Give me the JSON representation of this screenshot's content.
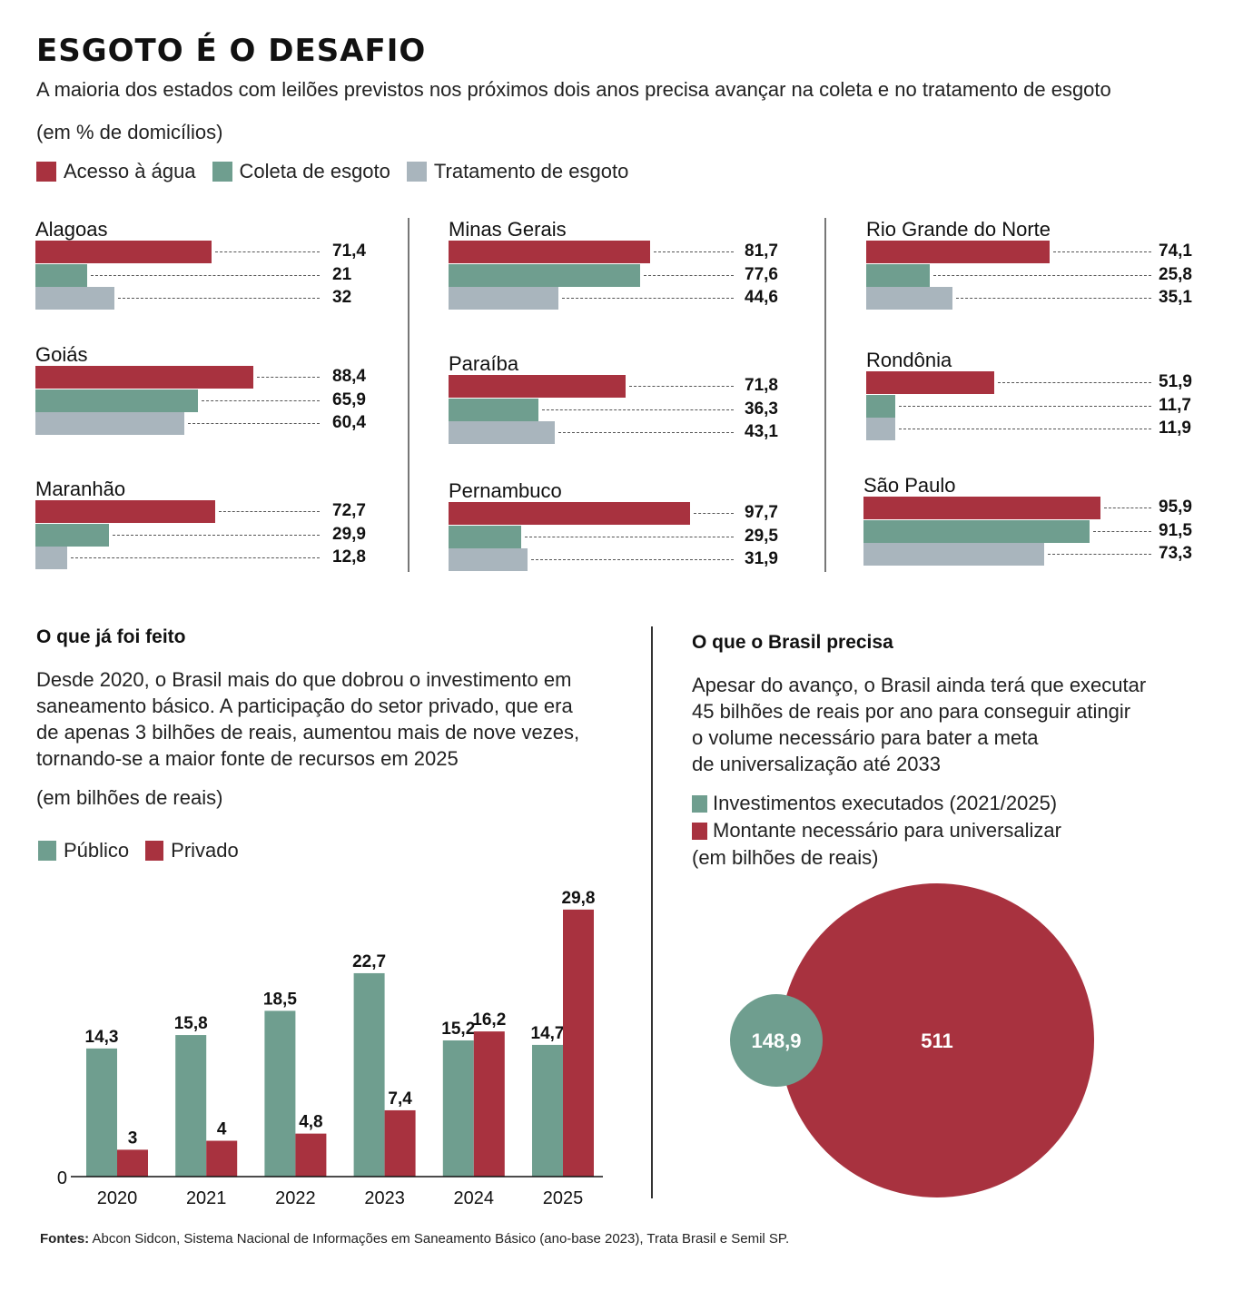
{
  "header": {
    "title": "ESGOTO É O DESAFIO",
    "subtitle": "A maioria dos estados com leilões previstos nos próximos dois anos precisa avançar na coleta e no tratamento de esgoto",
    "unit": "(em % de domicílios)"
  },
  "colors": {
    "agua": "#a8323f",
    "coleta": "#6f9e8f",
    "tratamento": "#a9b5bd",
    "publico": "#6f9e8f",
    "privado": "#a8323f"
  },
  "legend": [
    {
      "label": "Acesso à água",
      "color": "#a8323f"
    },
    {
      "label": "Coleta de esgoto",
      "color": "#6f9e8f"
    },
    {
      "label": "Tratamento de esgoto",
      "color": "#a9b5bd"
    }
  ],
  "chart_data": [
    {
      "type": "bar",
      "orientation": "horizontal",
      "title": "ESGOTO É O DESAFIO",
      "unit": "% de domicílios",
      "series_names": [
        "Acesso à água",
        "Coleta de esgoto",
        "Tratamento de esgoto"
      ],
      "xlim": [
        0,
        100
      ],
      "states": [
        {
          "name": "Alagoas",
          "values": [
            71.4,
            21,
            32
          ],
          "labels": [
            "71,4",
            "21",
            "32"
          ]
        },
        {
          "name": "Goiás",
          "values": [
            88.4,
            65.9,
            60.4
          ],
          "labels": [
            "88,4",
            "65,9",
            "60,4"
          ]
        },
        {
          "name": "Maranhão",
          "values": [
            72.7,
            29.9,
            12.8
          ],
          "labels": [
            "72,7",
            "29,9",
            "12,8"
          ]
        },
        {
          "name": "Minas Gerais",
          "values": [
            81.7,
            77.6,
            44.6
          ],
          "labels": [
            "81,7",
            "77,6",
            "44,6"
          ]
        },
        {
          "name": "Paraíba",
          "values": [
            71.8,
            36.3,
            43.1
          ],
          "labels": [
            "71,8",
            "36,3",
            "43,1"
          ]
        },
        {
          "name": "Pernambuco",
          "values": [
            97.7,
            29.5,
            31.9
          ],
          "labels": [
            "97,7",
            "29,5",
            "31,9"
          ]
        },
        {
          "name": "Rio Grande do Norte",
          "values": [
            74.1,
            25.8,
            35.1
          ],
          "labels": [
            "74,1",
            "25,8",
            "35,1"
          ]
        },
        {
          "name": "Rondônia",
          "values": [
            51.9,
            11.7,
            11.9
          ],
          "labels": [
            "51,9",
            "11,7",
            "11,9"
          ]
        },
        {
          "name": "São Paulo",
          "values": [
            95.9,
            91.5,
            73.3
          ],
          "labels": [
            "95,9",
            "91,5",
            "73,3"
          ]
        }
      ]
    },
    {
      "type": "bar",
      "title": "O que já foi feito",
      "ylabel": "em bilhões de reais",
      "categories": [
        "2020",
        "2021",
        "2022",
        "2023",
        "2024",
        "2025"
      ],
      "series": [
        {
          "name": "Público",
          "values": [
            14.3,
            15.8,
            18.5,
            22.7,
            15.2,
            14.7
          ],
          "labels": [
            "14,3",
            "15,8",
            "18,5",
            "22,7",
            "15,2",
            "14,7"
          ]
        },
        {
          "name": "Privado",
          "values": [
            3,
            4,
            4.8,
            7.4,
            16.2,
            29.8
          ],
          "labels": [
            "3",
            "4",
            "4,8",
            "7,4",
            "16,2",
            "29,8"
          ]
        }
      ],
      "ylim": [
        0,
        30
      ],
      "yticks": [
        "0"
      ],
      "legend": "top-left"
    },
    {
      "type": "bubble",
      "title": "O que o Brasil precisa",
      "unit": "em bilhões de reais",
      "items": [
        {
          "name": "Investimentos executados (2021/2025)",
          "value": 148.9,
          "label": "148,9"
        },
        {
          "name": "Montante necessário para universalizar",
          "value": 511,
          "label": "511"
        }
      ]
    }
  ],
  "section_done": {
    "heading": "O que já foi feito",
    "text": "Desde 2020, o Brasil mais do que dobrou o investimento em\nsaneamento básico. A participação do setor privado, que era\nde apenas 3 bilhões de reais, aumentou mais de nove vezes,\ntornando-se a maior fonte de recursos em 2025",
    "unit": "(em bilhões de reais)",
    "legend": [
      {
        "label": "Público"
      },
      {
        "label": "Privado"
      }
    ]
  },
  "section_need": {
    "heading": "O que o Brasil precisa",
    "text": "Apesar do avanço, o Brasil ainda terá que executar\n45 bilhões de reais por ano para conseguir atingir\no volume necessário para bater a meta\nde universalização até 2033",
    "legend": [
      {
        "label": "Investimentos executados (2021/2025)"
      },
      {
        "label": "Montante necessário para universalizar"
      }
    ],
    "unit": "(em bilhões de reais)"
  },
  "footer": {
    "label": "Fontes:",
    "text": "Abcon Sidcon, Sistema Nacional de Informações em Saneamento Básico (ano-base 2023), Trata Brasil e Semil SP."
  }
}
